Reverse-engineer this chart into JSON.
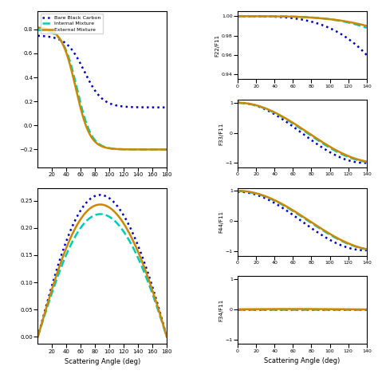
{
  "colors": {
    "bare": "#0000CC",
    "internal": "#00CCBB",
    "external": "#CC8800"
  },
  "linestyles": {
    "bare": "dotted",
    "internal": "--",
    "external": "-"
  },
  "linewidths": {
    "bare": 1.8,
    "internal": 1.8,
    "external": 1.8
  },
  "legend_labels": [
    "Bare Black Carbon",
    "Internal Mixture",
    "External Mixture"
  ],
  "xlabel": "Scattering Angle (deg)"
}
